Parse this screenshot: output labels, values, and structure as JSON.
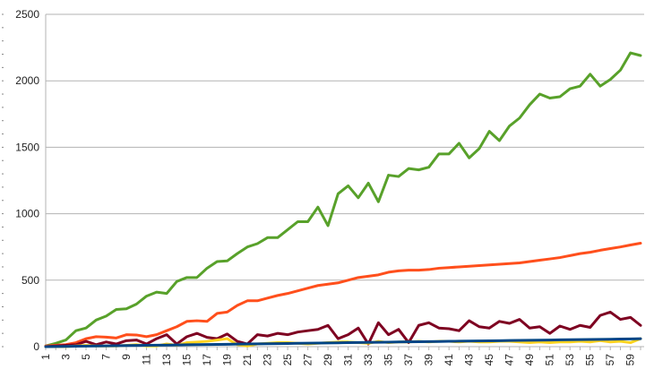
{
  "chart_data": {
    "type": "line",
    "title": "",
    "xlabel": "",
    "ylabel": "",
    "x": [
      1,
      2,
      3,
      4,
      5,
      6,
      7,
      8,
      9,
      10,
      11,
      12,
      13,
      14,
      15,
      16,
      17,
      18,
      19,
      20,
      21,
      22,
      23,
      24,
      25,
      26,
      27,
      28,
      29,
      30,
      31,
      32,
      33,
      34,
      35,
      36,
      37,
      38,
      39,
      40,
      41,
      42,
      43,
      44,
      45,
      46,
      47,
      48,
      49,
      50,
      51,
      52,
      53,
      54,
      55,
      56,
      57,
      58,
      59,
      60
    ],
    "x_tick_labels": [
      "1",
      "3",
      "5",
      "7",
      "9",
      "11",
      "13",
      "15",
      "17",
      "19",
      "21",
      "23",
      "25",
      "27",
      "29",
      "31",
      "33",
      "35",
      "37",
      "39",
      "41",
      "43",
      "45",
      "47",
      "49",
      "51",
      "53",
      "55",
      "57",
      "59"
    ],
    "ylim": [
      0,
      2500
    ],
    "y_ticks": [
      0,
      500,
      1000,
      1500,
      2000,
      2500
    ],
    "grid": "horizontal major gridlines",
    "legend": "none",
    "series": [
      {
        "color": "#58a12a",
        "values": [
          5,
          25,
          50,
          120,
          140,
          200,
          230,
          280,
          285,
          320,
          380,
          410,
          400,
          490,
          520,
          520,
          590,
          640,
          645,
          700,
          750,
          775,
          820,
          820,
          880,
          940,
          940,
          1050,
          910,
          1150,
          1210,
          1120,
          1230,
          1090,
          1290,
          1280,
          1340,
          1330,
          1350,
          1450,
          1450,
          1530,
          1420,
          1490,
          1620,
          1550,
          1660,
          1720,
          1820,
          1900,
          1870,
          1880,
          1940,
          1960,
          2050,
          1960,
          2010,
          2080,
          2210,
          2190
        ]
      },
      {
        "color": "#ff4f1c",
        "values": [
          5,
          10,
          15,
          30,
          60,
          75,
          72,
          65,
          90,
          88,
          75,
          90,
          120,
          150,
          190,
          195,
          190,
          250,
          260,
          310,
          345,
          345,
          365,
          385,
          400,
          420,
          440,
          460,
          470,
          480,
          500,
          520,
          530,
          540,
          560,
          570,
          575,
          575,
          580,
          590,
          595,
          600,
          605,
          610,
          615,
          620,
          625,
          630,
          640,
          650,
          660,
          670,
          685,
          700,
          710,
          725,
          738,
          750,
          765,
          778
        ]
      },
      {
        "color": "#7e0021",
        "values": [
          0,
          5,
          10,
          15,
          40,
          15,
          35,
          20,
          45,
          50,
          20,
          60,
          90,
          20,
          75,
          100,
          70,
          60,
          95,
          40,
          20,
          90,
          80,
          100,
          90,
          110,
          120,
          130,
          160,
          60,
          90,
          140,
          20,
          180,
          90,
          130,
          30,
          160,
          180,
          140,
          135,
          120,
          195,
          150,
          140,
          190,
          175,
          205,
          140,
          150,
          100,
          155,
          130,
          160,
          145,
          235,
          260,
          205,
          220,
          160
        ]
      },
      {
        "color": "#ffd320",
        "values": [
          0,
          0,
          0,
          5,
          10,
          5,
          5,
          5,
          10,
          15,
          5,
          5,
          20,
          10,
          30,
          35,
          40,
          50,
          60,
          15,
          5,
          20,
          25,
          30,
          30,
          25,
          20,
          25,
          30,
          35,
          35,
          30,
          25,
          40,
          30,
          35,
          35,
          40,
          35,
          40,
          40,
          35,
          40,
          35,
          35,
          40,
          40,
          35,
          30,
          35,
          30,
          35,
          35,
          40,
          35,
          45,
          35,
          40,
          30,
          60
        ]
      },
      {
        "color": "#004586",
        "values": [
          0,
          1,
          2,
          3,
          4,
          5,
          6,
          7,
          8,
          9,
          10,
          11,
          12,
          13,
          14,
          15,
          16,
          17,
          18,
          19,
          20,
          21,
          22,
          23,
          24,
          25,
          26,
          27,
          28,
          29,
          30,
          31,
          32,
          33,
          34,
          35,
          36,
          37,
          38,
          39,
          40,
          41,
          42,
          43,
          44,
          45,
          46,
          47,
          48,
          49,
          50,
          51,
          52,
          53,
          54,
          55,
          56,
          57,
          58,
          60
        ]
      }
    ]
  }
}
